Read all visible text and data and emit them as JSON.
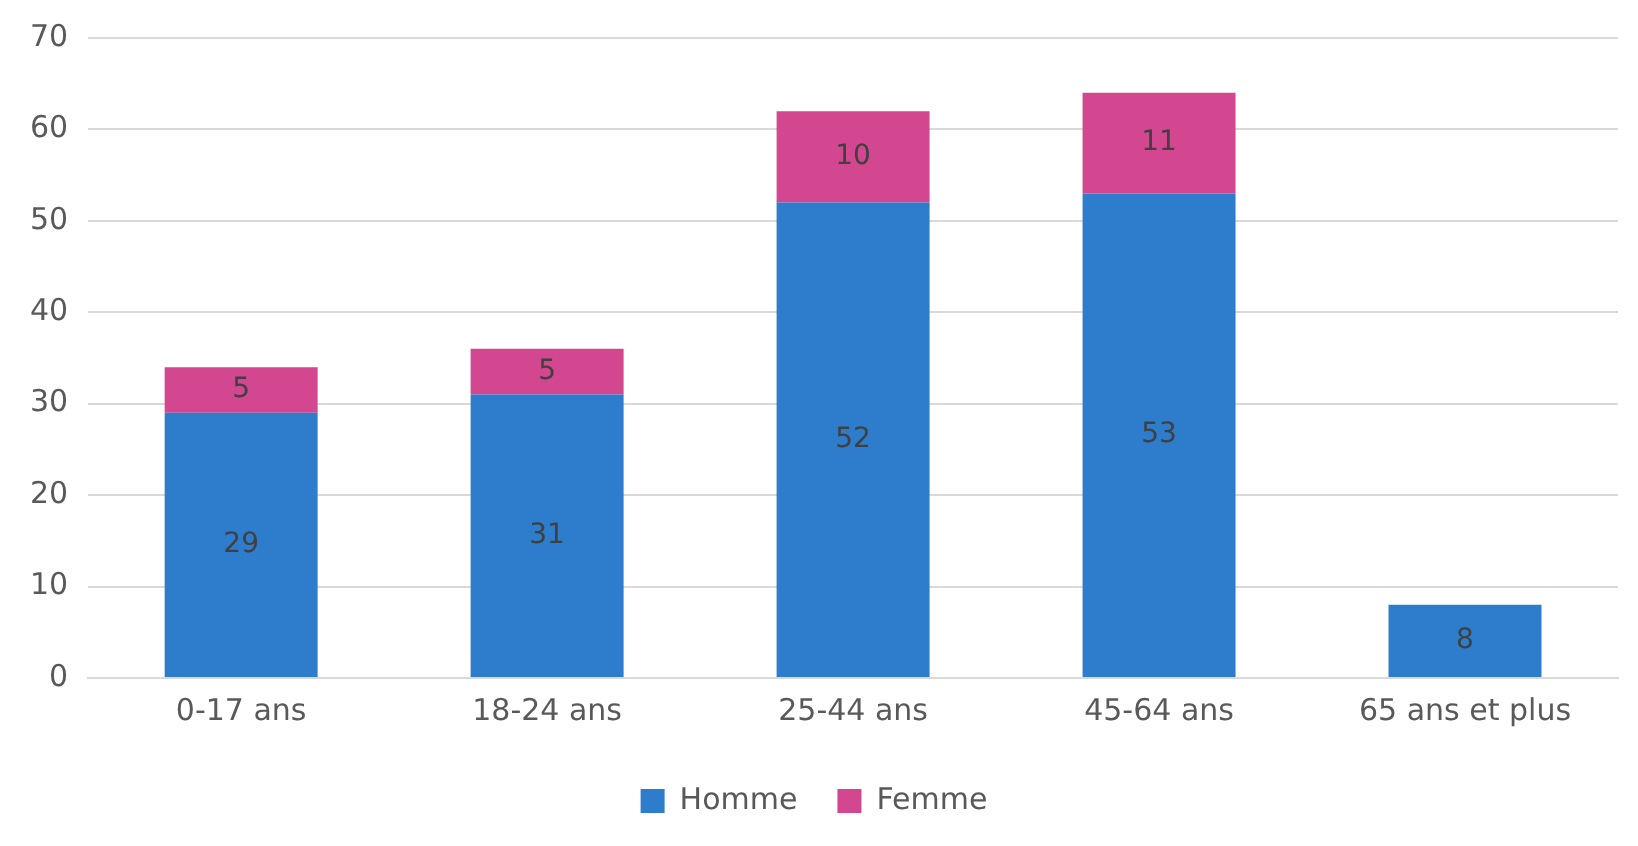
{
  "chart_data": {
    "type": "bar",
    "stacked": true,
    "categories": [
      "0-17 ans",
      "18-24 ans",
      "25-44 ans",
      "45-64 ans",
      "65 ans et plus"
    ],
    "series": [
      {
        "name": "Homme",
        "color": "#2e7dcc",
        "values": [
          29,
          31,
          52,
          53,
          8
        ]
      },
      {
        "name": "Femme",
        "color": "#d2478f",
        "values": [
          5,
          5,
          10,
          11,
          null
        ]
      }
    ],
    "ylim": [
      0,
      70
    ],
    "yticks": [
      0,
      10,
      20,
      30,
      40,
      50,
      60,
      70
    ],
    "grid": "y",
    "legend": "bottom",
    "data_labels": true
  }
}
